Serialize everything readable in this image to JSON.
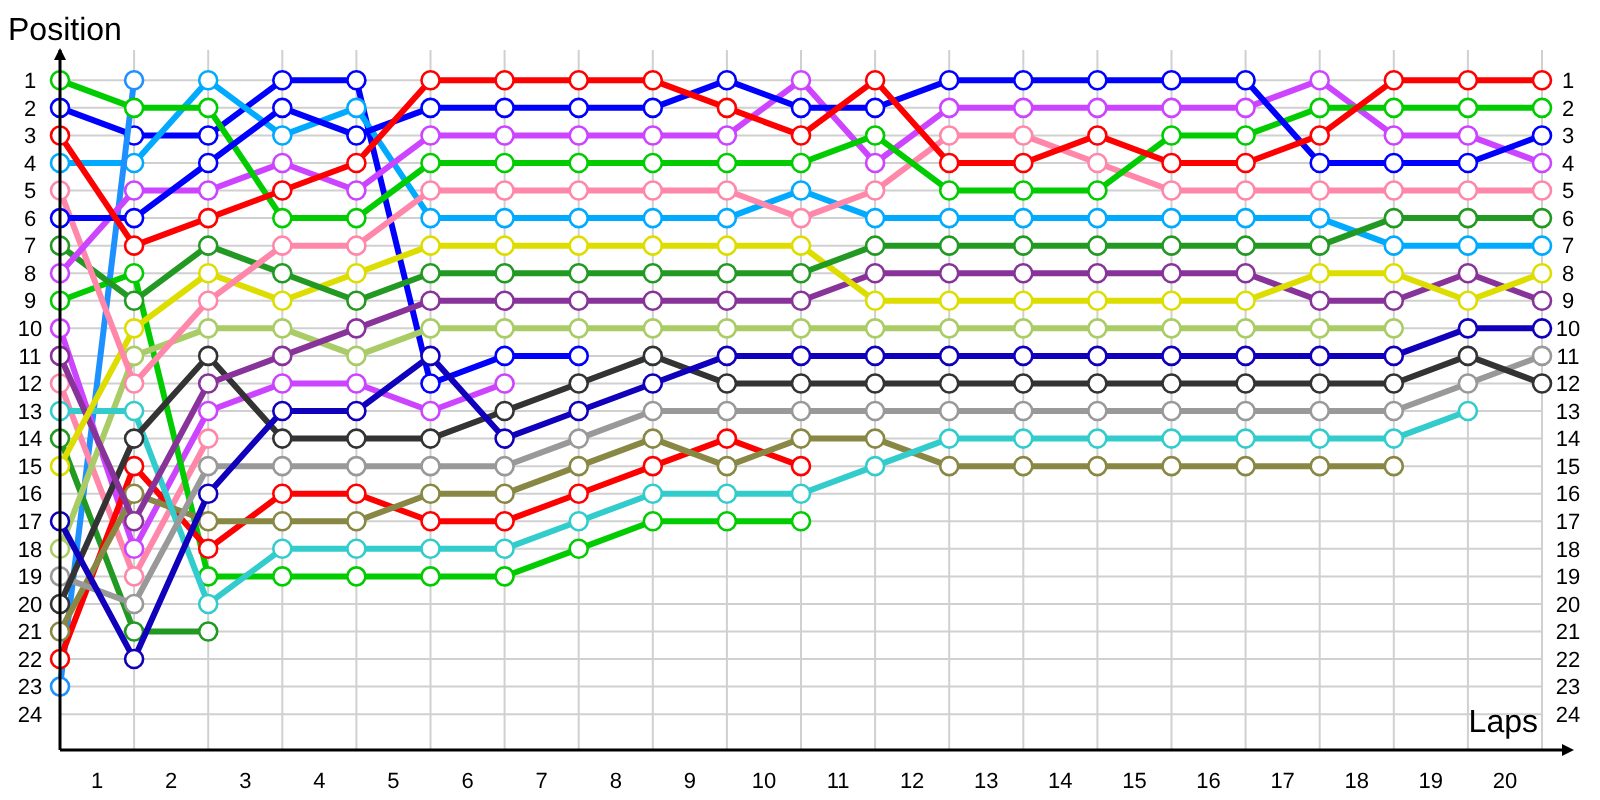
{
  "chart_data": {
    "type": "line",
    "xlabel": "Laps",
    "ylabel": "Position",
    "x": [
      0,
      1,
      2,
      3,
      4,
      5,
      6,
      7,
      8,
      9,
      10,
      11,
      12,
      13,
      14,
      15,
      16,
      17,
      18,
      19,
      20
    ],
    "xlim": [
      0,
      20
    ],
    "xticks": [
      {
        "value": 0.5,
        "label": "1"
      },
      {
        "value": 1,
        "label": null
      },
      {
        "value": 1.5,
        "label": "2"
      },
      {
        "value": 2,
        "label": null
      },
      {
        "value": 2.5,
        "label": "3"
      },
      {
        "value": 3,
        "label": null
      },
      {
        "value": 3.5,
        "label": "4"
      },
      {
        "value": 4,
        "label": null
      },
      {
        "value": 4.5,
        "label": "5"
      },
      {
        "value": 5,
        "label": null
      },
      {
        "value": 5.5,
        "label": "6"
      },
      {
        "value": 6,
        "label": null
      },
      {
        "value": 6.5,
        "label": "7"
      },
      {
        "value": 7,
        "label": null
      },
      {
        "value": 7.5,
        "label": "8"
      },
      {
        "value": 8,
        "label": null
      },
      {
        "value": 8.5,
        "label": "9"
      },
      {
        "value": 9,
        "label": null
      },
      {
        "value": 9.5,
        "label": "10"
      },
      {
        "value": 10,
        "label": null
      },
      {
        "value": 10.5,
        "label": "11"
      },
      {
        "value": 11,
        "label": null
      },
      {
        "value": 11.5,
        "label": "12"
      },
      {
        "value": 12,
        "label": null
      },
      {
        "value": 12.5,
        "label": "13"
      },
      {
        "value": 13,
        "label": null
      },
      {
        "value": 13.5,
        "label": "14"
      },
      {
        "value": 14,
        "label": null
      },
      {
        "value": 14.5,
        "label": "15"
      },
      {
        "value": 15,
        "label": null
      },
      {
        "value": 15.5,
        "label": "16"
      },
      {
        "value": 16,
        "label": null
      },
      {
        "value": 16.5,
        "label": "17"
      },
      {
        "value": 17,
        "label": null
      },
      {
        "value": 17.5,
        "label": "18"
      },
      {
        "value": 18,
        "label": null
      },
      {
        "value": 18.5,
        "label": "19"
      },
      {
        "value": 19,
        "label": null
      },
      {
        "value": 19.5,
        "label": "20"
      },
      {
        "value": 20,
        "label": null
      }
    ],
    "ylim": [
      25.3,
      -0.1
    ],
    "yticks": [
      1,
      2,
      3,
      4,
      5,
      6,
      7,
      8,
      9,
      10,
      11,
      12,
      13,
      14,
      15,
      16,
      17,
      18,
      19,
      20,
      21,
      22,
      23,
      24
    ],
    "y2lim": [
      25.3,
      -0.1
    ],
    "y2ticks": [
      1,
      2,
      3,
      4,
      5,
      6,
      7,
      8,
      9,
      10,
      11,
      12,
      13,
      14,
      15,
      16,
      17,
      18,
      19,
      20,
      21,
      22,
      23,
      24
    ],
    "grid": true,
    "marker": "circle",
    "line_style": "solid",
    "series": [
      {
        "color": "#0000ff",
        "values": [
          2,
          3,
          3,
          1,
          1,
          12,
          11,
          11,
          null,
          null,
          null,
          null,
          null,
          null,
          null,
          null,
          null,
          null,
          null,
          null,
          null
        ]
      },
      {
        "color": "#00aaff",
        "values": [
          4,
          4,
          1,
          3,
          2,
          6,
          6,
          6,
          6,
          6,
          5,
          6,
          6,
          6,
          6,
          6,
          6,
          6,
          7,
          7,
          7
        ]
      },
      {
        "color": "#1e90ff",
        "values": [
          23,
          1,
          null,
          null,
          null,
          null,
          null,
          null,
          null,
          null,
          null,
          null,
          null,
          null,
          null,
          null,
          null,
          null,
          null,
          null,
          null
        ]
      },
      {
        "color": "#ff88aa",
        "values": [
          12,
          19,
          14,
          null,
          null,
          null,
          null,
          null,
          null,
          null,
          null,
          null,
          null,
          null,
          null,
          null,
          null,
          null,
          null,
          null,
          null
        ]
      },
      {
        "color": "#229922",
        "values": [
          14,
          21,
          21,
          null,
          null,
          null,
          null,
          null,
          null,
          null,
          null,
          null,
          null,
          null,
          null,
          null,
          null,
          null,
          null,
          null,
          null
        ]
      },
      {
        "color": "#cc44ff",
        "values": [
          10,
          18,
          13,
          12,
          12,
          13,
          12,
          null,
          null,
          null,
          null,
          null,
          null,
          null,
          null,
          null,
          null,
          null,
          null,
          null,
          null
        ]
      },
      {
        "color": "#00cc00",
        "values": [
          9,
          8,
          19,
          19,
          19,
          19,
          19,
          18,
          17,
          17,
          17,
          null,
          null,
          null,
          null,
          null,
          null,
          null,
          null,
          null,
          null
        ]
      },
      {
        "color": "#ff0000",
        "values": [
          22,
          15,
          18,
          16,
          16,
          17,
          17,
          16,
          15,
          14,
          15,
          null,
          null,
          null,
          null,
          null,
          null,
          null,
          null,
          null,
          null
        ]
      },
      {
        "color": "#aacc66",
        "values": [
          18,
          11,
          10,
          10,
          11,
          10,
          10,
          10,
          10,
          10,
          10,
          10,
          10,
          10,
          10,
          10,
          10,
          10,
          10,
          null,
          null
        ]
      },
      {
        "color": "#888844",
        "values": [
          21,
          16,
          17,
          17,
          17,
          16,
          16,
          15,
          14,
          15,
          14,
          14,
          15,
          15,
          15,
          15,
          15,
          15,
          15,
          null,
          null
        ]
      },
      {
        "color": "#33cccc",
        "values": [
          13,
          13,
          20,
          18,
          18,
          18,
          18,
          17,
          16,
          16,
          16,
          15,
          14,
          14,
          14,
          14,
          14,
          14,
          14,
          13,
          null
        ]
      },
      {
        "color": "#999999",
        "values": [
          19,
          20,
          15,
          15,
          15,
          15,
          15,
          14,
          13,
          13,
          13,
          13,
          13,
          13,
          13,
          13,
          13,
          13,
          13,
          12,
          11
        ]
      },
      {
        "color": "#333333",
        "values": [
          20,
          14,
          11,
          14,
          14,
          14,
          13,
          12,
          11,
          12,
          12,
          12,
          12,
          12,
          12,
          12,
          12,
          12,
          12,
          11,
          12
        ]
      },
      {
        "color": "#1100bb",
        "values": [
          17,
          22,
          16,
          13,
          13,
          11,
          14,
          13,
          12,
          11,
          11,
          11,
          11,
          11,
          11,
          11,
          11,
          11,
          11,
          10,
          10
        ]
      },
      {
        "color": "#883399",
        "values": [
          11,
          17,
          12,
          11,
          10,
          9,
          9,
          9,
          9,
          9,
          9,
          8,
          8,
          8,
          8,
          8,
          8,
          9,
          9,
          8,
          9
        ]
      },
      {
        "color": "#dddd00",
        "values": [
          15,
          10,
          8,
          9,
          8,
          7,
          7,
          7,
          7,
          7,
          7,
          9,
          9,
          9,
          9,
          9,
          9,
          8,
          8,
          9,
          8
        ]
      },
      {
        "color": "#229922",
        "values": [
          7,
          9,
          7,
          8,
          9,
          8,
          8,
          8,
          8,
          8,
          8,
          7,
          7,
          7,
          7,
          7,
          7,
          7,
          6,
          6,
          6
        ]
      },
      {
        "color": "#ff88aa",
        "values": [
          5,
          12,
          9,
          7,
          7,
          5,
          5,
          5,
          5,
          5,
          6,
          5,
          3,
          3,
          4,
          5,
          5,
          5,
          5,
          5,
          5
        ]
      },
      {
        "color": "#cc44ff",
        "values": [
          8,
          5,
          5,
          4,
          5,
          3,
          3,
          3,
          3,
          3,
          1,
          4,
          2,
          2,
          2,
          2,
          2,
          1,
          3,
          3,
          4
        ]
      },
      {
        "color": "#00cc00",
        "values": [
          1,
          2,
          2,
          6,
          6,
          4,
          4,
          4,
          4,
          4,
          4,
          3,
          5,
          5,
          5,
          3,
          3,
          2,
          2,
          2,
          2
        ]
      },
      {
        "color": "#0000ff",
        "values": [
          6,
          6,
          4,
          2,
          3,
          2,
          2,
          2,
          2,
          1,
          2,
          2,
          1,
          1,
          1,
          1,
          1,
          4,
          4,
          4,
          3
        ]
      },
      {
        "color": "#ff0000",
        "values": [
          3,
          7,
          6,
          5,
          4,
          1,
          1,
          1,
          1,
          2,
          3,
          1,
          4,
          4,
          3,
          4,
          4,
          3,
          1,
          1,
          1
        ]
      }
    ]
  }
}
